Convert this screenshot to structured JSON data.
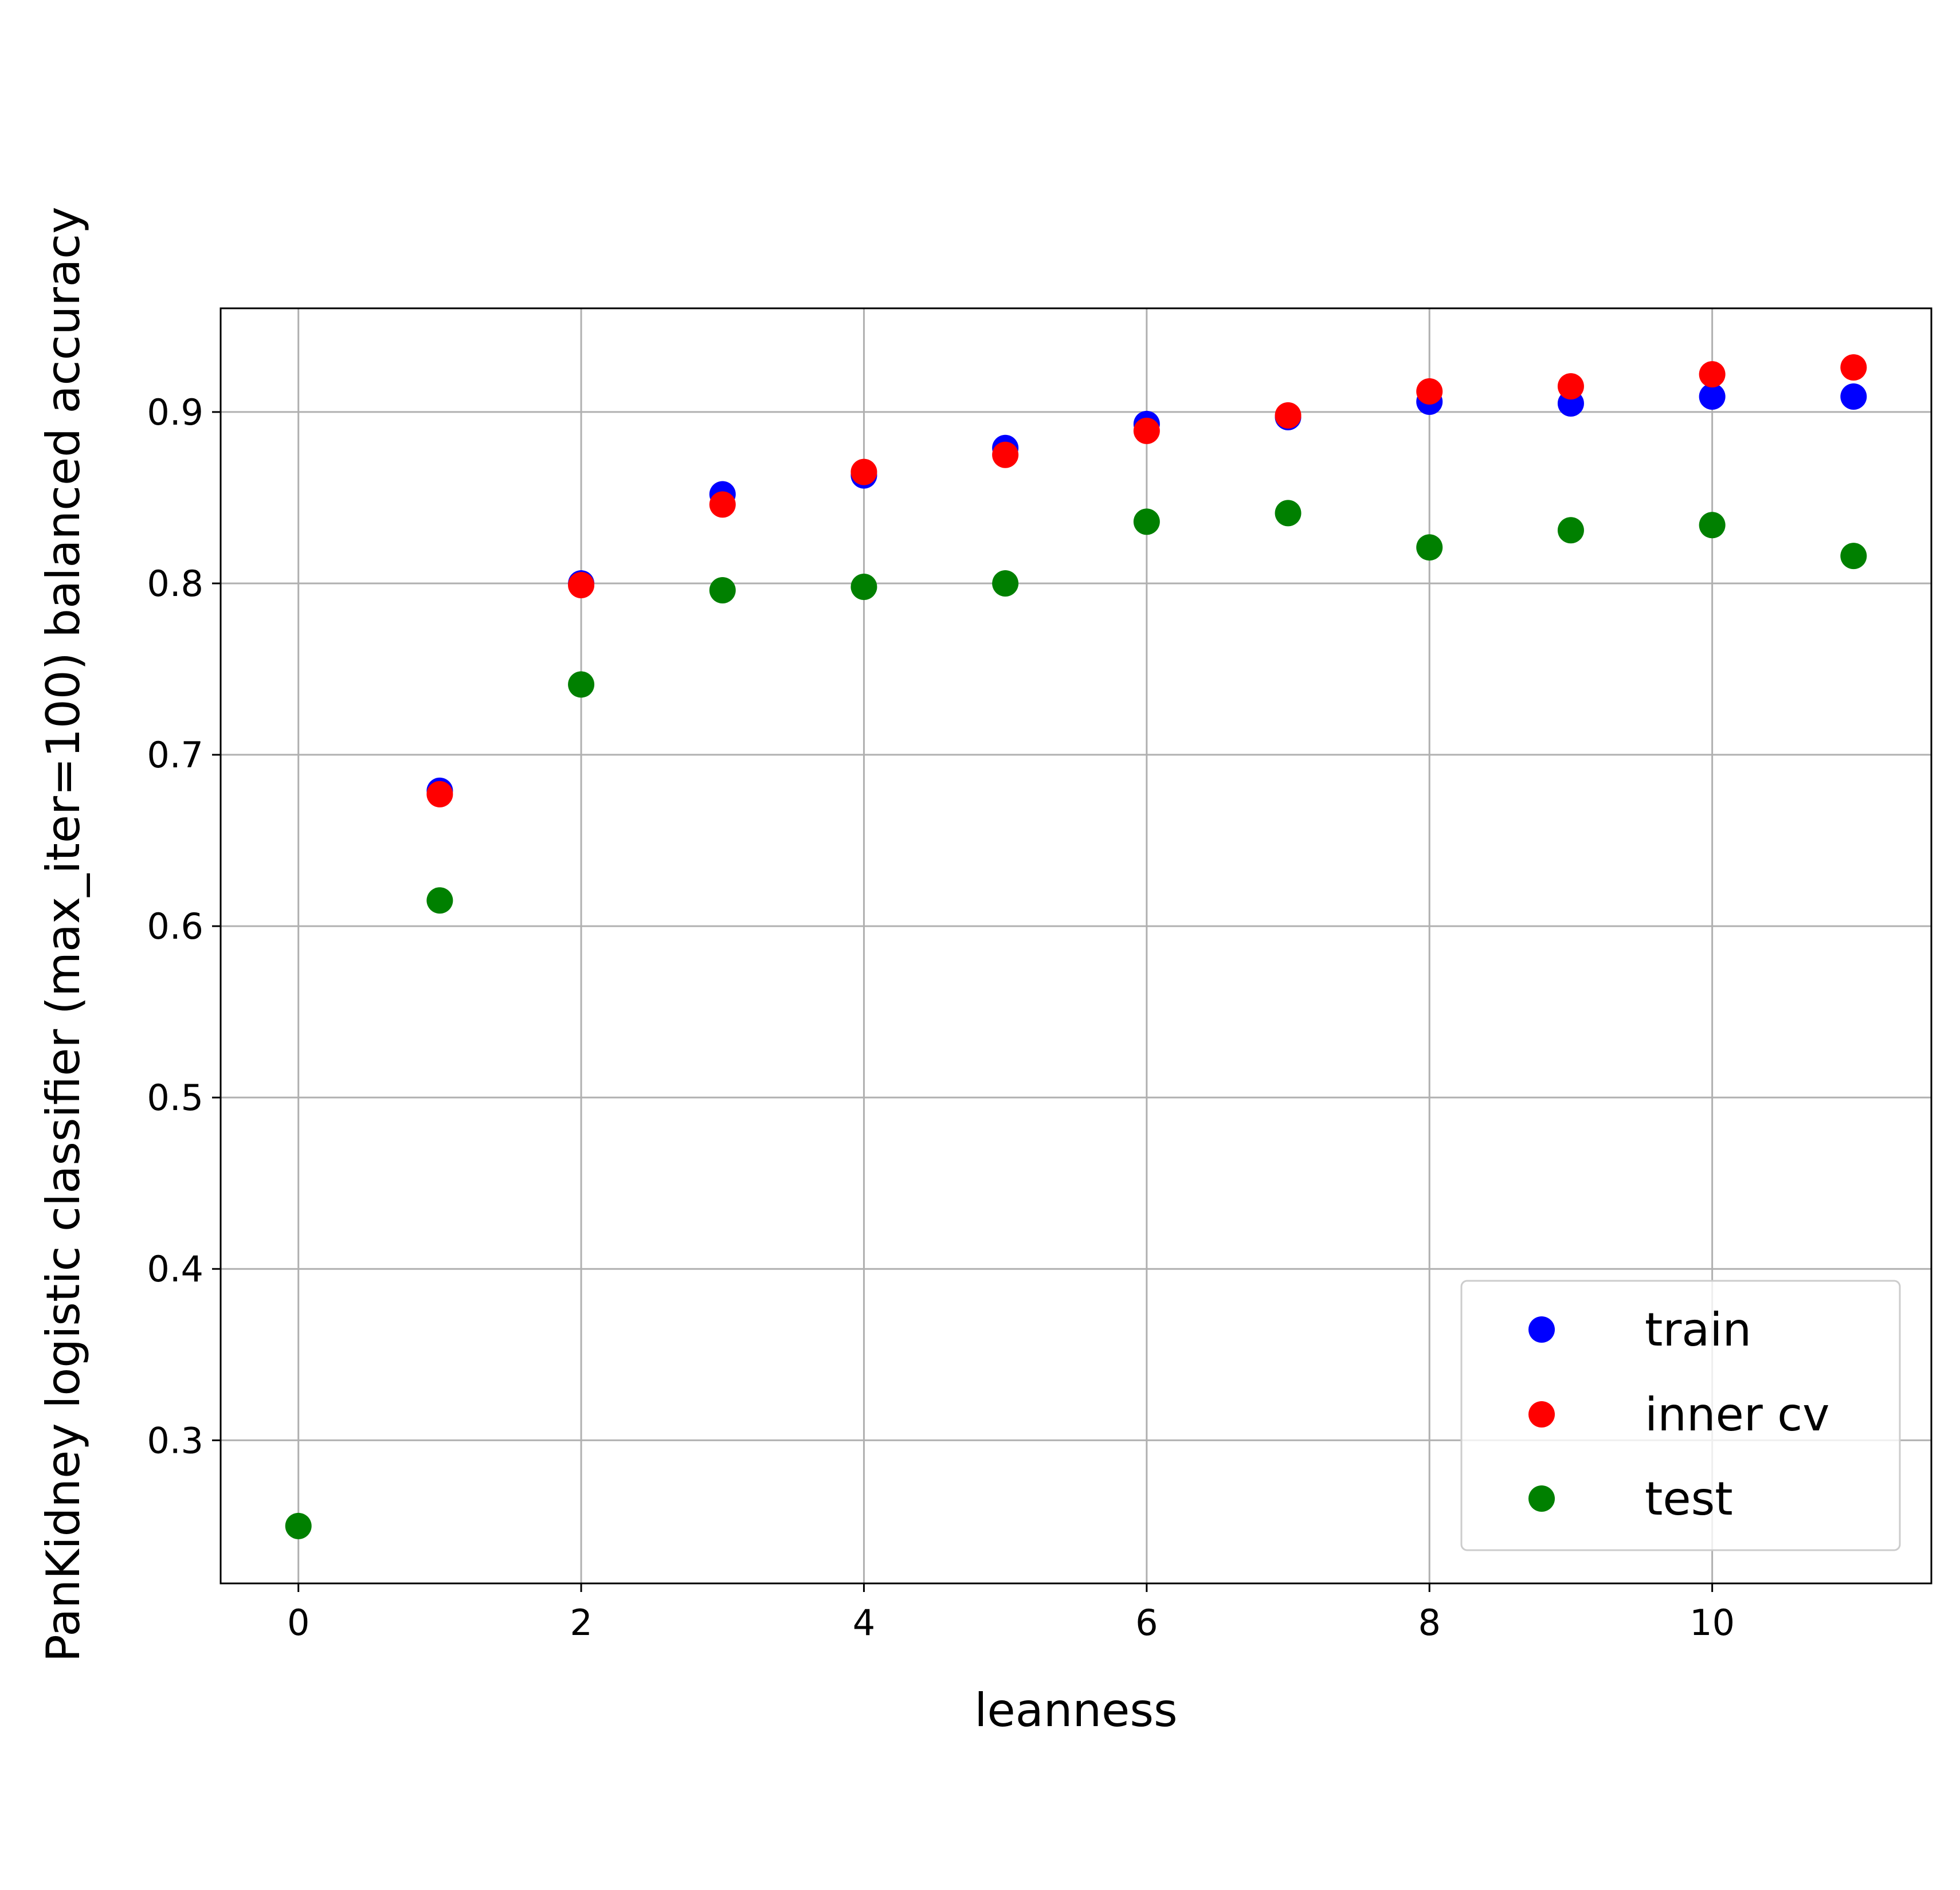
{
  "chart_data": {
    "type": "scatter",
    "title": "",
    "xlabel": "leanness",
    "ylabel": "PanKidney logistic classifier (max_iter=100) balanced accuracy",
    "xlim": [
      -0.55,
      11.55
    ],
    "ylim": [
      0.2165,
      0.9605
    ],
    "xticks": [
      0,
      2,
      4,
      6,
      8,
      10
    ],
    "xtick_labels": [
      "0",
      "2",
      "4",
      "6",
      "8",
      "10"
    ],
    "yticks": [
      0.3,
      0.4,
      0.5,
      0.6,
      0.7,
      0.8,
      0.9
    ],
    "ytick_labels": [
      "0.3",
      "0.4",
      "0.5",
      "0.6",
      "0.7",
      "0.8",
      "0.9"
    ],
    "grid": true,
    "legend_position": "lower-right",
    "series": [
      {
        "name": "train",
        "color": "#0000ff",
        "x": [
          1,
          2,
          3,
          4,
          5,
          6,
          7,
          8,
          9,
          10,
          11
        ],
        "y": [
          0.679,
          0.8,
          0.852,
          0.863,
          0.879,
          0.893,
          0.897,
          0.906,
          0.905,
          0.909,
          0.909
        ]
      },
      {
        "name": "inner cv",
        "color": "#ff0000",
        "x": [
          1,
          2,
          3,
          4,
          5,
          6,
          7,
          8,
          9,
          10,
          11
        ],
        "y": [
          0.677,
          0.799,
          0.846,
          0.865,
          0.875,
          0.889,
          0.898,
          0.912,
          0.915,
          0.922,
          0.926
        ]
      },
      {
        "name": "test",
        "color": "#008000",
        "x": [
          0,
          1,
          2,
          3,
          4,
          5,
          6,
          7,
          8,
          9,
          10,
          11
        ],
        "y": [
          0.25,
          0.615,
          0.741,
          0.796,
          0.798,
          0.8,
          0.836,
          0.841,
          0.821,
          0.831,
          0.834,
          0.816
        ]
      }
    ]
  }
}
